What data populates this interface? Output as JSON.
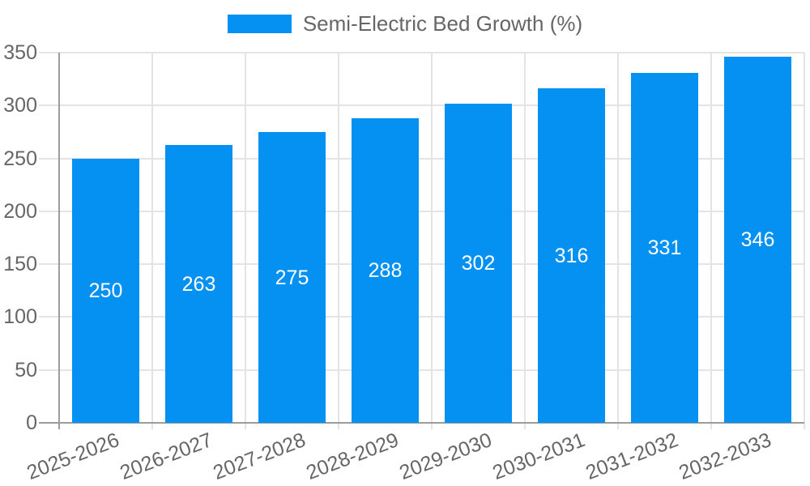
{
  "legend": {
    "label": "Semi-Electric Bed Growth (%)"
  },
  "colors": {
    "bar": "#0591f2",
    "legend_swatch": "#0591f2",
    "grid": "#e4e4e4",
    "axis": "#9c9c9c",
    "tick_label": "#666666",
    "value_label": "#ffffff"
  },
  "chart_data": {
    "type": "bar",
    "title": "Semi-Electric Bed Growth (%)",
    "categories": [
      "2025-2026",
      "2026-2027",
      "2027-2028",
      "2028-2029",
      "2029-2030",
      "2030-2031",
      "2031-2032",
      "2032-2033"
    ],
    "values": [
      250,
      263,
      275,
      288,
      302,
      316,
      331,
      346
    ],
    "xlabel": "",
    "ylabel": "",
    "ylim": [
      0,
      350
    ],
    "ytick_step": 50,
    "yticks": [
      0,
      50,
      100,
      150,
      200,
      250,
      300,
      350
    ],
    "grid": true,
    "legend_position": "top",
    "value_labels": "inside-center",
    "x_label_rotation_deg": -21
  }
}
